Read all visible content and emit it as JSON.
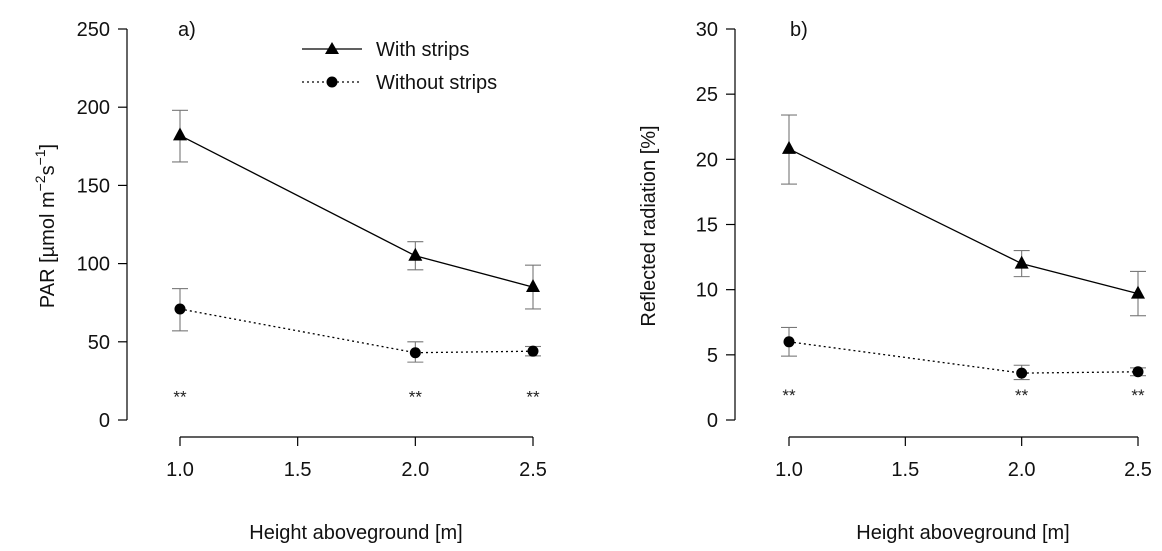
{
  "legend": {
    "with_label": "With strips",
    "without_label": "Without strips"
  },
  "chart_data": [
    {
      "type": "line",
      "panel_label": "a)",
      "xlabel": "Height aboveground [m]",
      "ylabel_prefix": "PAR [µmol m",
      "ylabel_exp1": "−2",
      "ylabel_mid": "s",
      "ylabel_exp2": "−1",
      "ylabel_suffix": "]",
      "xlim": [
        1.0,
        2.5
      ],
      "ylim": [
        0,
        250
      ],
      "xticks": [
        1.0,
        1.5,
        2.0,
        2.5
      ],
      "xtick_labels": [
        "1.0",
        "1.5",
        "2.0",
        "2.5"
      ],
      "yticks": [
        0,
        50,
        100,
        150,
        200,
        250
      ],
      "ytick_labels": [
        "0",
        "50",
        "100",
        "150",
        "200",
        "250"
      ],
      "x": [
        1.0,
        2.0,
        2.5
      ],
      "series": [
        {
          "name": "With strips",
          "marker": "triangle",
          "line": "solid",
          "values": [
            182,
            105,
            85
          ],
          "err_low": [
            165,
            96,
            71
          ],
          "err_high": [
            198,
            114,
            99
          ]
        },
        {
          "name": "Without strips",
          "marker": "circle",
          "line": "dotted",
          "values": [
            71,
            43,
            44
          ],
          "err_low": [
            57,
            37,
            41
          ],
          "err_high": [
            84,
            50,
            47
          ]
        }
      ],
      "significance": [
        "**",
        "**",
        "**"
      ],
      "significance_y": 15
    },
    {
      "type": "line",
      "panel_label": "b)",
      "xlabel": "Height aboveground [m]",
      "ylabel": "Reflected radiation [%]",
      "xlim": [
        1.0,
        2.5
      ],
      "ylim": [
        0,
        30
      ],
      "xticks": [
        1.0,
        1.5,
        2.0,
        2.5
      ],
      "xtick_labels": [
        "1.0",
        "1.5",
        "2.0",
        "2.5"
      ],
      "yticks": [
        0,
        5,
        10,
        15,
        20,
        25,
        30
      ],
      "ytick_labels": [
        "0",
        "5",
        "10",
        "15",
        "20",
        "25",
        "30"
      ],
      "x": [
        1.0,
        2.0,
        2.5
      ],
      "series": [
        {
          "name": "With strips",
          "marker": "triangle",
          "line": "solid",
          "values": [
            20.8,
            12.0,
            9.7
          ],
          "err_low": [
            18.1,
            11.0,
            8.0
          ],
          "err_high": [
            23.4,
            13.0,
            11.4
          ]
        },
        {
          "name": "Without strips",
          "marker": "circle",
          "line": "dotted",
          "values": [
            6.0,
            3.6,
            3.7
          ],
          "err_low": [
            4.9,
            3.1,
            3.4
          ],
          "err_high": [
            7.1,
            4.2,
            4.0
          ]
        }
      ],
      "significance": [
        "**",
        "**",
        "**"
      ],
      "significance_y": 1.9
    }
  ]
}
